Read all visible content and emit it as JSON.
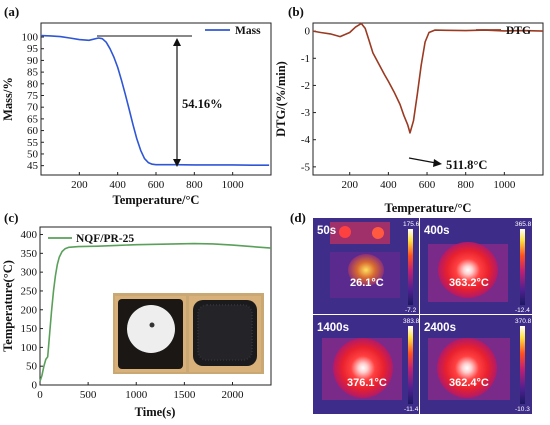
{
  "chart_data": [
    {
      "type": "line",
      "panel_label": "(a)",
      "xlabel": "Temperature/°C",
      "ylabel": "Mass/%",
      "xlim": [
        0,
        1200
      ],
      "ylim": [
        41,
        106
      ],
      "xticks": [
        200,
        400,
        600,
        800,
        1000
      ],
      "yticks": [
        45,
        50,
        55,
        60,
        65,
        70,
        75,
        80,
        85,
        90,
        95,
        100
      ],
      "legend_position": "top-right",
      "series": [
        {
          "name": "Mass",
          "color": "#2f56d6",
          "x": [
            0,
            50,
            100,
            150,
            200,
            250,
            300,
            320,
            340,
            360,
            380,
            400,
            420,
            440,
            460,
            480,
            500,
            520,
            540,
            560,
            580,
            600,
            700,
            800,
            900,
            1000,
            1100,
            1190
          ],
          "y": [
            100.6,
            100.5,
            100.2,
            99.6,
            98.9,
            98.6,
            99.6,
            99.3,
            97.8,
            95.0,
            91.5,
            87.0,
            81.5,
            75.5,
            69.0,
            62.5,
            56.5,
            51.5,
            48.0,
            46.3,
            45.6,
            45.4,
            45.4,
            45.3,
            45.3,
            45.3,
            45.2,
            45.2
          ]
        }
      ],
      "annotations": [
        {
          "text": "54.16%"
        }
      ]
    },
    {
      "type": "line",
      "panel_label": "(b)",
      "xlabel": "Temperature/°C",
      "ylabel": "DTG/(%/min)",
      "xlim": [
        10,
        1200
      ],
      "ylim": [
        -5.3,
        0.3
      ],
      "xticks": [
        200,
        400,
        600,
        800,
        1000
      ],
      "yticks": [
        0,
        -1,
        -2,
        -3,
        -4,
        -5
      ],
      "yticklabels": [
        "0",
        "-1",
        "-2",
        "-3",
        "-4",
        "-5"
      ],
      "legend_position": "top-right",
      "series": [
        {
          "name": "DTG",
          "color": "#9b3a22",
          "x": [
            10,
            50,
            100,
            150,
            200,
            230,
            260,
            280,
            300,
            320,
            350,
            380,
            400,
            430,
            460,
            480,
            500,
            512,
            530,
            550,
            570,
            590,
            610,
            640,
            700,
            800,
            900,
            1000,
            1100,
            1200
          ],
          "y": [
            0,
            -0.05,
            -0.1,
            -0.2,
            -0.05,
            0.15,
            0.28,
            0.1,
            -0.35,
            -0.8,
            -1.2,
            -1.6,
            -1.85,
            -2.25,
            -2.7,
            -3.1,
            -3.45,
            -3.75,
            -3.3,
            -2.3,
            -1.25,
            -0.4,
            -0.05,
            0.04,
            0.03,
            0.02,
            0.04,
            0.01,
            0.02,
            0.0
          ]
        }
      ],
      "annotations": [
        {
          "text": "511.8°C"
        }
      ]
    },
    {
      "type": "line",
      "panel_label": "(c)",
      "xlabel": "Time(s)",
      "ylabel": "Temperature(°C)",
      "xlim": [
        0,
        2400
      ],
      "ylim": [
        0,
        420
      ],
      "xticks": [
        0,
        500,
        1000,
        1500,
        2000
      ],
      "yticks": [
        0,
        50,
        100,
        150,
        200,
        250,
        300,
        350,
        400
      ],
      "legend_position": "top-left",
      "series": [
        {
          "name": "NQF/PR-25",
          "color": "#5aa05a",
          "x": [
            0,
            20,
            40,
            60,
            80,
            100,
            120,
            140,
            160,
            180,
            200,
            230,
            260,
            300,
            400,
            600,
            800,
            1000,
            1200,
            1400,
            1600,
            1800,
            2000,
            2200,
            2400
          ],
          "y": [
            10,
            25,
            50,
            68,
            75,
            135,
            195,
            250,
            290,
            320,
            340,
            355,
            362,
            366,
            368,
            369,
            371,
            373,
            374,
            375,
            376,
            375,
            372,
            368,
            364
          ]
        }
      ]
    }
  ],
  "panel_d": {
    "label": "(d)",
    "images": [
      {
        "time": "50s",
        "temp": "26.1°C",
        "scale_max": "175.6",
        "scale_min": "-7.2"
      },
      {
        "time": "400s",
        "temp": "363.2°C",
        "scale_max": "365.8",
        "scale_min": "-12.4"
      },
      {
        "time": "1400s",
        "temp": "376.1°C",
        "scale_max": "383.8",
        "scale_min": "-11.4"
      },
      {
        "time": "2400s",
        "temp": "362.4°C",
        "scale_max": "370.8",
        "scale_min": "-10.3"
      }
    ]
  }
}
